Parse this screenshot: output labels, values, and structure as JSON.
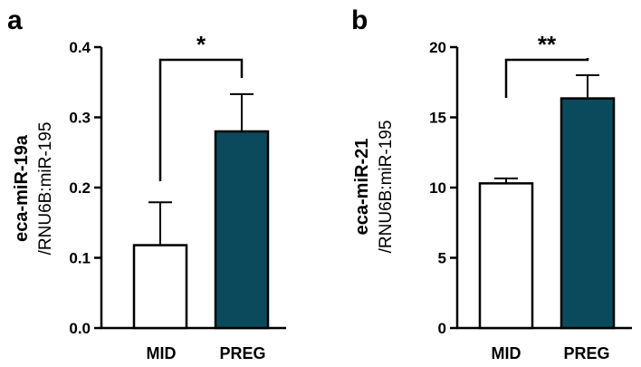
{
  "chart_data": [
    {
      "type": "bar",
      "panel_label": "a",
      "ylabel": "eca-miR-19a",
      "ylabel_sub": "/RNU6B:miR-195",
      "categories": [
        "MID",
        "PREG"
      ],
      "values": [
        0.118,
        0.28
      ],
      "errors": [
        0.061,
        0.053
      ],
      "colors": [
        "#ffffff",
        "#0b4a5c"
      ],
      "ylim": [
        0,
        0.4
      ],
      "yticks": [
        0.0,
        0.1,
        0.2,
        0.3,
        0.4
      ],
      "ytick_labels": [
        "0.0",
        "0.1",
        "0.2",
        "0.3",
        "0.4"
      ],
      "significance": "*"
    },
    {
      "type": "bar",
      "panel_label": "b",
      "ylabel": "eca-miR-21",
      "ylabel_sub": "/RNU6B:miR-195",
      "categories": [
        "MID",
        "PREG"
      ],
      "values": [
        10.3,
        16.35
      ],
      "errors": [
        0.35,
        1.65
      ],
      "colors": [
        "#ffffff",
        "#0b4a5c"
      ],
      "ylim": [
        0,
        20
      ],
      "yticks": [
        0,
        5,
        10,
        15,
        20
      ],
      "ytick_labels": [
        "0",
        "5",
        "10",
        "15",
        "20"
      ],
      "significance": "**"
    }
  ]
}
